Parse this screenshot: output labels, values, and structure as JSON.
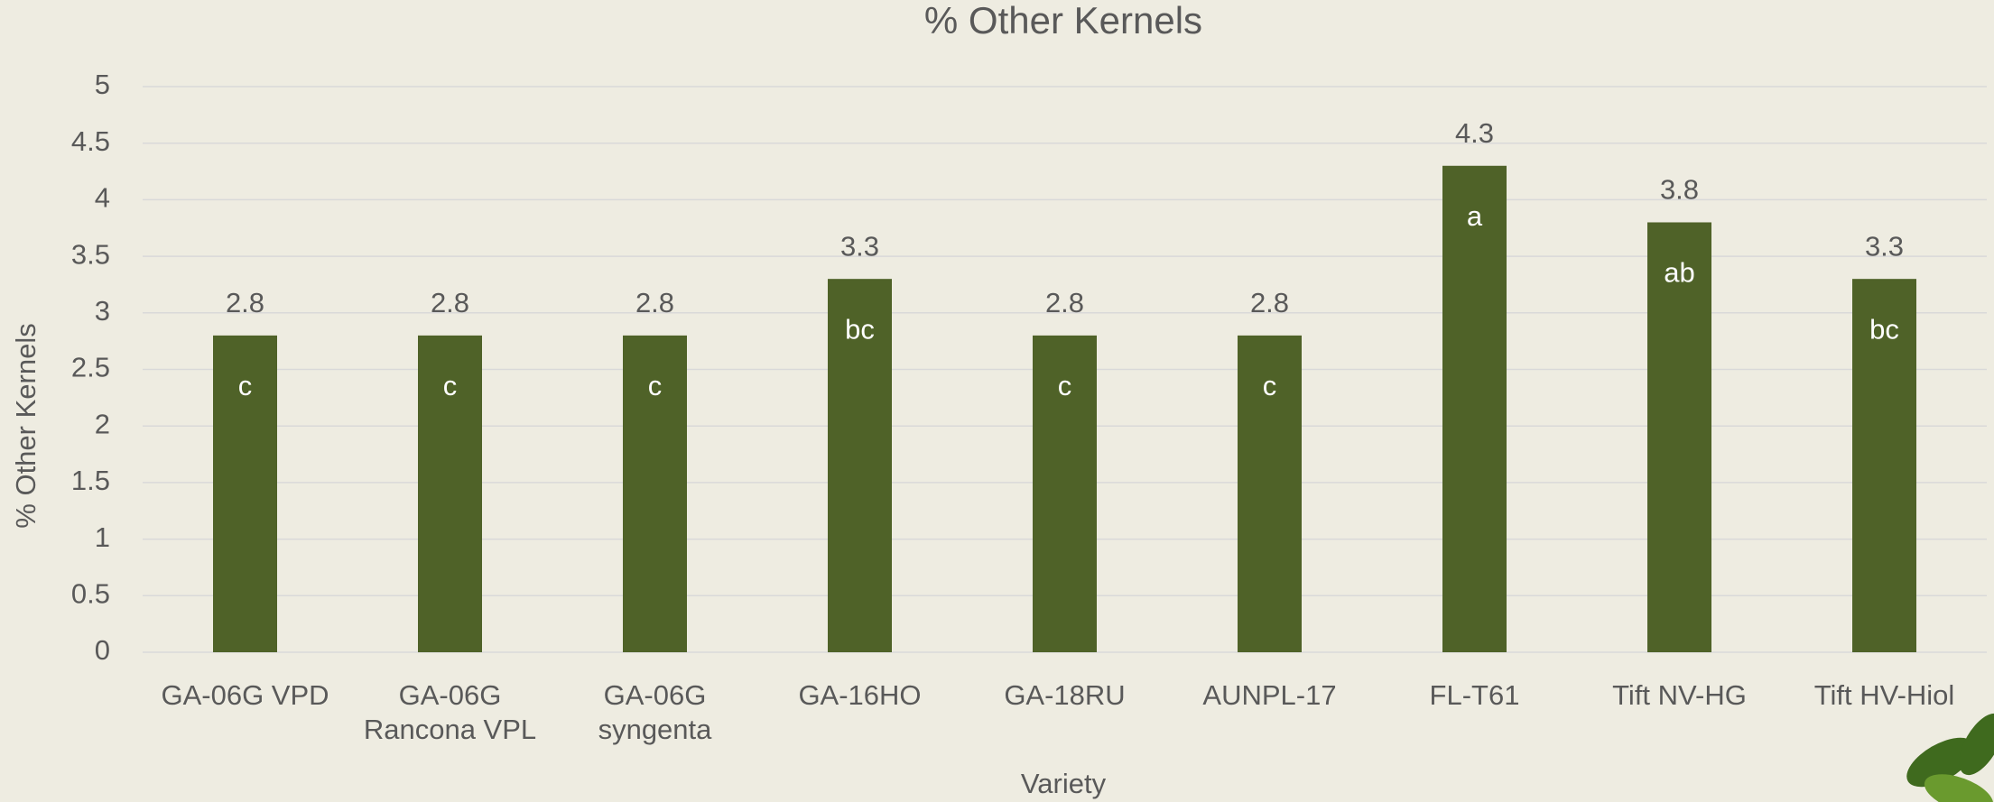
{
  "chart_data": {
    "type": "bar",
    "title": "% Other Kernels",
    "x_label": "Variety",
    "y_label": "% Other Kernels",
    "categories": [
      "GA-06G VPD",
      "GA-06G Rancona VPL",
      "GA-06G syngenta",
      "GA-16HO",
      "GA-18RU",
      "AUNPL-17",
      "FL-T61",
      "Tift NV-HG",
      "Tift HV-Hiol"
    ],
    "values": [
      2.8,
      2.8,
      2.8,
      3.3,
      2.8,
      2.8,
      4.3,
      3.8,
      3.3
    ],
    "significance_letters": [
      "c",
      "c",
      "c",
      "bc",
      "c",
      "c",
      "a",
      "ab",
      "bc"
    ],
    "color": "#4f6228",
    "ylim": [
      0,
      5
    ],
    "yticks": [
      0,
      0.5,
      1,
      1.5,
      2,
      2.5,
      3,
      3.5,
      4,
      4.5,
      5
    ],
    "grid": true
  }
}
